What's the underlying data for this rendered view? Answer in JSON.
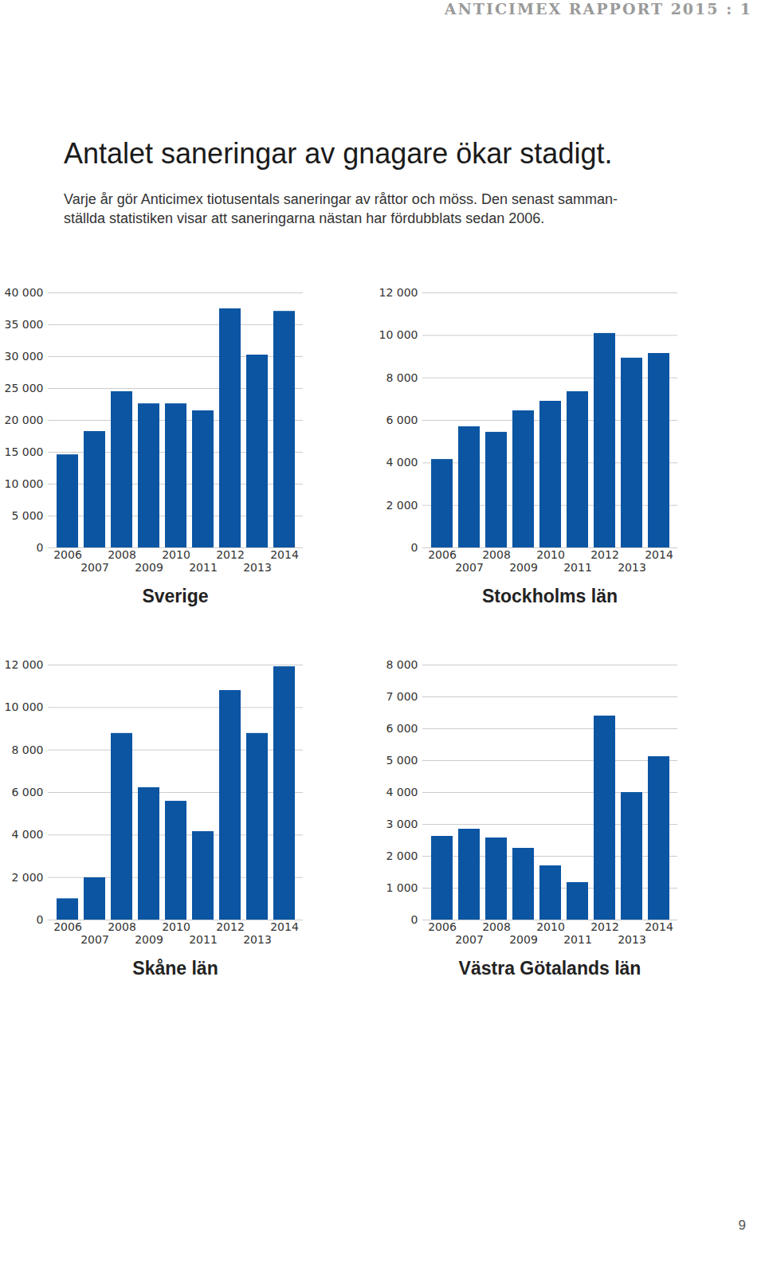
{
  "header": "ANTICIMEX RAPPORT 2015 : 1",
  "title": "Antalet saneringar av gnagare ökar stadigt.",
  "subtitle": [
    "Varje år gör Anticimex tiotusentals saneringar av råttor och möss. Den senast samman-",
    "ställda statistiken visar att saneringarna nästan har fördubblats sedan 2006."
  ],
  "page_number": "9",
  "chart_data": [
    {
      "type": "bar",
      "title": "Sverige",
      "categories": [
        "2006",
        "2007",
        "2008",
        "2009",
        "2010",
        "2011",
        "2012",
        "2013",
        "2014"
      ],
      "values": [
        14600,
        18250,
        24500,
        22600,
        22600,
        21500,
        37500,
        30250,
        37100
      ],
      "color": "#0b55a3",
      "ylim": [
        0,
        40000
      ],
      "yticks": [
        0,
        {
          "value": 5000,
          "label": "5 000"
        },
        {
          "value": 10000,
          "label": "10 000"
        },
        {
          "value": 15000,
          "label": "15 000"
        },
        {
          "value": 20000,
          "label": "20 000"
        },
        {
          "value": 25000,
          "label": "25 000"
        },
        {
          "value": 30000,
          "label": "30 000"
        },
        {
          "value": 35000,
          "label": "35 000"
        },
        {
          "value": 40000,
          "label": "40 000"
        }
      ],
      "grid": true
    },
    {
      "type": "bar",
      "title": "Stockholms län",
      "categories": [
        "2006",
        "2007",
        "2008",
        "2009",
        "2010",
        "2011",
        "2012",
        "2013",
        "2014"
      ],
      "values": [
        4160,
        5700,
        5440,
        6450,
        6900,
        7350,
        10090,
        8930,
        9150
      ],
      "color": "#0b55a3",
      "ylim": [
        0,
        12000
      ],
      "yticks": [
        0,
        {
          "value": 2000,
          "label": "2 000"
        },
        {
          "value": 4000,
          "label": "4 000"
        },
        {
          "value": 6000,
          "label": "6 000"
        },
        {
          "value": 8000,
          "label": "8 000"
        },
        {
          "value": 10000,
          "label": "10 000"
        },
        {
          "value": 12000,
          "label": "12 000"
        }
      ],
      "grid": true
    },
    {
      "type": "bar",
      "title": "Skåne län",
      "categories": [
        "2006",
        "2007",
        "2008",
        "2009",
        "2010",
        "2011",
        "2012",
        "2013",
        "2014"
      ],
      "values": [
        1000,
        1990,
        8780,
        6230,
        5590,
        4160,
        10800,
        8780,
        11920
      ],
      "color": "#0b55a3",
      "ylim": [
        0,
        12000
      ],
      "yticks": [
        0,
        {
          "value": 2000,
          "label": "2 000"
        },
        {
          "value": 4000,
          "label": "4 000"
        },
        {
          "value": 6000,
          "label": "6 000"
        },
        {
          "value": 8000,
          "label": "8 000"
        },
        {
          "value": 10000,
          "label": "10 000"
        },
        {
          "value": 12000,
          "label": "12 000"
        }
      ],
      "grid": true
    },
    {
      "type": "bar",
      "title": "Västra Götalands län",
      "categories": [
        "2006",
        "2007",
        "2008",
        "2009",
        "2010",
        "2011",
        "2012",
        "2013",
        "2014"
      ],
      "values": [
        2625,
        2850,
        2575,
        2250,
        1700,
        1175,
        6400,
        4000,
        5125
      ],
      "color": "#0b55a3",
      "ylim": [
        0,
        8000
      ],
      "yticks": [
        0,
        {
          "value": 1000,
          "label": "1 000"
        },
        {
          "value": 2000,
          "label": "2 000"
        },
        {
          "value": 3000,
          "label": "3 000"
        },
        {
          "value": 4000,
          "label": "4 000"
        },
        {
          "value": 5000,
          "label": "5 000"
        },
        {
          "value": 6000,
          "label": "6 000"
        },
        {
          "value": 7000,
          "label": "7 000"
        },
        {
          "value": 8000,
          "label": "8 000"
        }
      ],
      "grid": true
    }
  ]
}
